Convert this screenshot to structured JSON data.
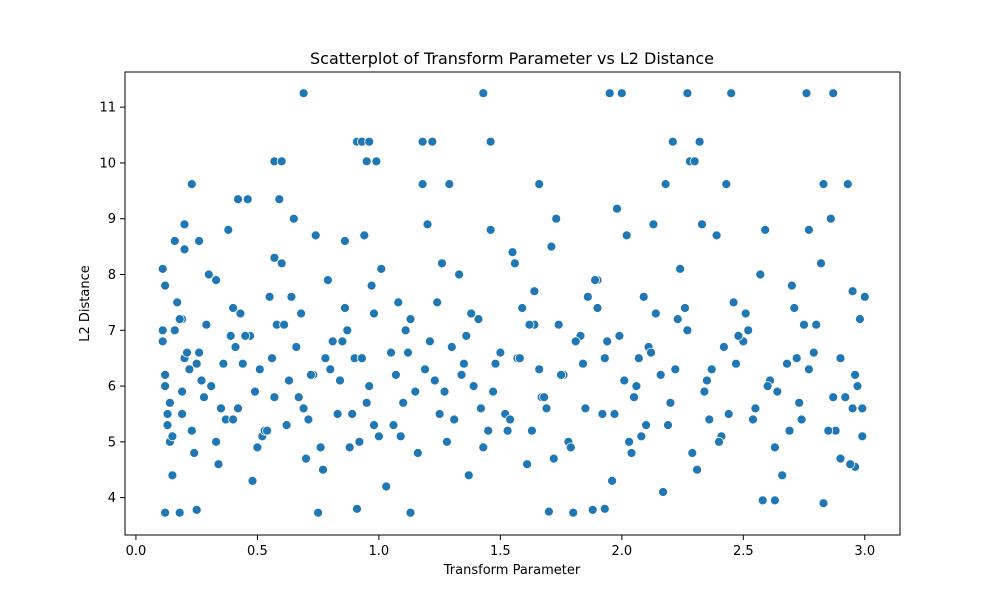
{
  "chart_data": {
    "type": "scatter",
    "title": "Scatterplot of Transform Parameter vs L2 Distance",
    "xlabel": "Transform Parameter",
    "ylabel": "L2 Distance",
    "xlim": [
      -0.045,
      3.145
    ],
    "ylim": [
      3.33,
      11.63
    ],
    "xticks": [
      0.0,
      0.5,
      1.0,
      1.5,
      2.0,
      2.5,
      3.0
    ],
    "xtick_labels": [
      "0.0",
      "0.5",
      "1.0",
      "1.5",
      "2.0",
      "2.5",
      "3.0"
    ],
    "yticks": [
      4,
      5,
      6,
      7,
      8,
      9,
      10,
      11
    ],
    "ytick_labels": [
      "4",
      "5",
      "6",
      "7",
      "8",
      "9",
      "10",
      "11"
    ],
    "grid": false,
    "marker_color": "#1f77b4",
    "series": [
      {
        "x": [
          0.69,
          1.43,
          1.95,
          2.0,
          2.27,
          2.45,
          2.76,
          2.87,
          0.91,
          0.93,
          0.96,
          0.95,
          0.99,
          1.18,
          1.22,
          1.46,
          2.21,
          2.32,
          2.28,
          2.3,
          0.57,
          0.6,
          1.98,
          2.18,
          0.23,
          0.42,
          0.46,
          0.59,
          1.18,
          1.29,
          1.66,
          2.43,
          2.83,
          2.93,
          0.12,
          0.18,
          0.25,
          0.75,
          0.91,
          1.13,
          1.7,
          1.8,
          1.88,
          1.93,
          2.17,
          2.58,
          2.63,
          2.83,
          2.96,
          0.16,
          0.2,
          0.26,
          0.57,
          0.74,
          0.86,
          1.26,
          1.55,
          1.71,
          2.13,
          2.39,
          2.77,
          0.12,
          0.33,
          0.55,
          0.97,
          1.08,
          1.64,
          1.9,
          2.09,
          2.7,
          2.95,
          0.11,
          0.19,
          0.29,
          0.47,
          0.68,
          0.87,
          1.41,
          1.74,
          1.99,
          2.26,
          2.52,
          2.98,
          0.12,
          0.2,
          0.36,
          0.63,
          0.8,
          1.12,
          1.34,
          1.57,
          1.84,
          2.22,
          2.61,
          2.9,
          0.13,
          0.28,
          0.42,
          0.71,
          0.95,
          1.27,
          1.52,
          1.69,
          2.05,
          2.36,
          2.73,
          2.99,
          0.14,
          0.23,
          0.52,
          0.62,
          0.88,
          1.09,
          1.45,
          1.78,
          2.04,
          2.41,
          2.88,
          0.15,
          0.34,
          0.48,
          0.77,
          1.03,
          1.37,
          1.61,
          1.96,
          2.31,
          2.66,
          2.94,
          0.11,
          0.26,
          0.45,
          0.66,
          0.9,
          1.21,
          1.5,
          1.83,
          2.11,
          2.5,
          2.79,
          0.19,
          0.31,
          0.57,
          0.84,
          1.15,
          1.39,
          1.67,
          2.01,
          2.34,
          2.6,
          2.92,
          0.17,
          0.4,
          0.64,
          0.98,
          1.24,
          1.59,
          1.86,
          2.14,
          2.46,
          2.71,
          3.0,
          0.13,
          0.37,
          0.53,
          0.83,
          1.06,
          1.31,
          1.63,
          1.92,
          2.19,
          2.54,
          2.85,
          0.22,
          0.44,
          0.73,
          0.93,
          1.19,
          1.48,
          1.76,
          2.07,
          2.37,
          2.68,
          2.96,
          0.11,
          0.3,
          0.6,
          0.79,
          1.01,
          1.33,
          1.56,
          1.89,
          2.24,
          2.57,
          2.82,
          0.24,
          0.5,
          0.7,
          0.92,
          1.16,
          1.43,
          1.72,
          2.03,
          2.29,
          2.63,
          2.9,
          0.16,
          0.39,
          0.58,
          0.81,
          1.11,
          1.36,
          1.64,
          1.94,
          2.27,
          2.48,
          2.75,
          0.14,
          0.35,
          0.67,
          0.89,
          1.1,
          1.42,
          1.68,
          1.97,
          2.2,
          2.55,
          2.87,
          0.21,
          0.41,
          0.56,
          0.85,
          1.05,
          1.3,
          1.58,
          1.81,
          2.12,
          2.42,
          2.72,
          0.12,
          0.27,
          0.49,
          0.72,
          0.96,
          1.23,
          1.47,
          1.75,
          2.06,
          2.35,
          2.64,
          2.97,
          0.18,
          0.43,
          0.61,
          0.86,
          1.13,
          1.38,
          1.62,
          1.9,
          2.23,
          2.51,
          2.8,
          0.15,
          0.33,
          0.54,
          0.76,
          1.0,
          1.28,
          1.53,
          1.79,
          2.08,
          2.4,
          2.69,
          2.99,
          0.2,
          0.38,
          0.65,
          0.94,
          1.2,
          1.46,
          1.73,
          2.02,
          2.33,
          2.59,
          2.86,
          0.25,
          0.51,
          0.78,
          1.07,
          1.35,
          1.66,
          1.93,
          2.16,
          2.47,
          2.77,
          0.19,
          0.4,
          0.69,
          0.98,
          1.25,
          1.54,
          1.85,
          2.1,
          2.44,
          2.74,
          2.95
        ],
        "y": [
          11.25,
          11.25,
          11.25,
          11.25,
          11.25,
          11.25,
          11.25,
          11.25,
          10.38,
          10.38,
          10.38,
          10.03,
          10.03,
          10.38,
          10.38,
          10.38,
          10.38,
          10.38,
          10.03,
          10.03,
          10.03,
          10.03,
          9.18,
          9.62,
          9.62,
          9.35,
          9.35,
          9.35,
          9.62,
          9.62,
          9.62,
          9.62,
          9.62,
          9.62,
          3.73,
          3.73,
          3.78,
          3.73,
          3.8,
          3.73,
          3.75,
          3.73,
          3.78,
          3.8,
          4.1,
          3.95,
          3.95,
          3.9,
          4.55,
          8.6,
          8.45,
          8.6,
          8.3,
          8.7,
          8.6,
          8.2,
          8.4,
          8.5,
          8.9,
          8.7,
          8.8,
          7.8,
          7.9,
          7.6,
          7.8,
          7.5,
          7.7,
          7.9,
          7.6,
          7.8,
          7.7,
          7.0,
          7.2,
          7.1,
          6.9,
          7.3,
          7.0,
          7.2,
          7.1,
          6.9,
          7.4,
          7.0,
          7.2,
          6.2,
          6.5,
          6.4,
          6.1,
          6.3,
          6.6,
          6.2,
          6.5,
          6.4,
          6.3,
          6.1,
          6.5,
          5.5,
          5.8,
          5.6,
          5.4,
          5.7,
          5.9,
          5.5,
          5.6,
          5.8,
          5.4,
          5.7,
          5.6,
          5.0,
          5.2,
          5.1,
          5.3,
          4.9,
          5.1,
          5.2,
          5.0,
          4.8,
          5.1,
          5.2,
          4.4,
          4.6,
          4.3,
          4.5,
          4.2,
          4.4,
          4.6,
          4.3,
          4.5,
          4.4,
          4.6,
          6.8,
          6.6,
          6.9,
          6.7,
          6.5,
          6.8,
          6.6,
          6.9,
          6.7,
          6.8,
          6.6,
          5.9,
          6.0,
          5.8,
          6.1,
          5.9,
          6.0,
          5.8,
          6.1,
          5.9,
          6.0,
          5.8,
          7.5,
          7.4,
          7.6,
          7.3,
          7.5,
          7.4,
          7.6,
          7.3,
          7.5,
          7.4,
          7.6,
          5.3,
          5.4,
          5.2,
          5.5,
          5.3,
          5.4,
          5.2,
          5.5,
          5.3,
          5.4,
          5.2,
          6.3,
          6.4,
          6.2,
          6.5,
          6.3,
          6.4,
          6.2,
          6.5,
          6.3,
          6.4,
          6.2,
          8.1,
          8.0,
          8.2,
          7.9,
          8.1,
          8.0,
          8.2,
          7.9,
          8.1,
          8.0,
          8.2,
          4.8,
          4.9,
          4.7,
          5.0,
          4.8,
          4.9,
          4.7,
          5.0,
          4.8,
          4.9,
          4.7,
          7.0,
          6.9,
          7.1,
          6.8,
          7.0,
          6.9,
          7.1,
          6.8,
          7.0,
          6.9,
          7.1,
          5.7,
          5.6,
          5.8,
          5.5,
          5.7,
          5.6,
          5.8,
          5.5,
          5.7,
          5.6,
          5.8,
          6.6,
          6.7,
          6.5,
          6.8,
          6.6,
          6.7,
          6.5,
          6.8,
          6.6,
          6.7,
          6.5,
          6.0,
          6.1,
          5.9,
          6.2,
          6.0,
          6.1,
          5.9,
          6.2,
          6.0,
          6.1,
          5.9,
          6.0,
          7.2,
          7.3,
          7.1,
          7.4,
          7.2,
          7.3,
          7.1,
          7.4,
          7.2,
          7.3,
          7.1,
          5.1,
          5.0,
          5.2,
          4.9,
          5.1,
          5.0,
          5.2,
          4.9,
          5.1,
          5.0,
          5.2,
          5.1,
          8.9,
          8.8,
          9.0,
          8.7,
          8.9,
          8.8,
          9.0,
          8.7,
          8.9,
          8.8,
          9.0,
          6.4,
          6.3,
          6.5,
          6.2,
          6.4,
          6.3,
          6.5,
          6.2,
          6.4,
          6.3,
          5.5,
          5.4,
          5.6,
          5.3,
          5.5,
          5.4,
          5.6,
          5.3,
          5.5,
          5.4,
          5.6
        ]
      }
    ]
  }
}
